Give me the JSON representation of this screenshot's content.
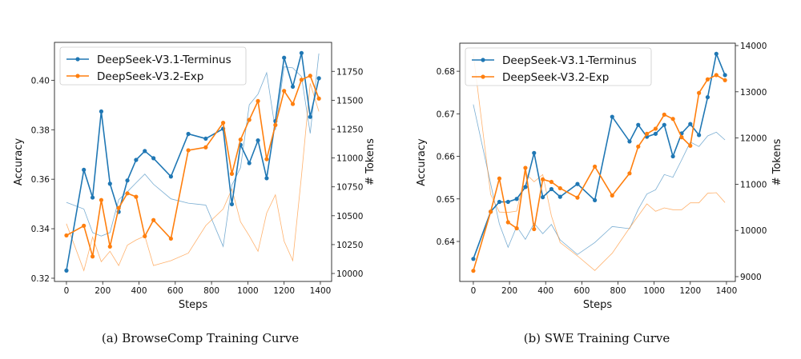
{
  "colors": {
    "terminus": "#1f77b4",
    "exp": "#ff7f0e"
  },
  "chart_data": [
    {
      "type": "line",
      "caption": "(a)  BrowseComp Training Curve",
      "xlabel": "Steps",
      "ylabel": "Accuracy",
      "y2label": "# Tokens",
      "xlim": [
        -66,
        1462
      ],
      "ylim": [
        0.3187,
        0.4153
      ],
      "y2lim": [
        9931,
        12001
      ],
      "xticks": [
        0,
        200,
        400,
        600,
        800,
        1000,
        1200,
        1400
      ],
      "yticks": [
        "0.32",
        "0.34",
        "0.36",
        "0.38",
        "0.40"
      ],
      "y2ticks": [
        "10000",
        "10250",
        "10500",
        "10750",
        "11000",
        "11250",
        "11500",
        "11750"
      ],
      "legend_position": "top-left",
      "x": [
        0,
        96,
        144,
        192,
        240,
        288,
        336,
        384,
        432,
        480,
        576,
        672,
        768,
        864,
        912,
        960,
        1008,
        1056,
        1104,
        1152,
        1200,
        1248,
        1296,
        1344,
        1392
      ],
      "series": [
        {
          "name": "DeepSeek-V3.1-Terminus",
          "key": "terminus",
          "axis": "accuracy",
          "values": [
            0.3231,
            0.3638,
            0.3526,
            0.3874,
            0.3582,
            0.3468,
            0.3595,
            0.3678,
            0.3714,
            0.3685,
            0.3611,
            0.3783,
            0.3764,
            0.3804,
            0.3499,
            0.3739,
            0.3665,
            0.3757,
            0.3604,
            0.3835,
            0.4091,
            0.3974,
            0.411,
            0.3852,
            0.4008
          ]
        },
        {
          "name": "DeepSeek-V3.2-Exp",
          "key": "exp",
          "axis": "accuracy",
          "values": [
            0.3373,
            0.3412,
            0.3288,
            0.3516,
            0.3328,
            0.3484,
            0.3543,
            0.3529,
            0.337,
            0.3435,
            0.336,
            0.3717,
            0.3729,
            0.3828,
            0.3622,
            0.376,
            0.384,
            0.3916,
            0.3681,
            0.3819,
            0.3957,
            0.3904,
            0.4002,
            0.4018,
            0.3926
          ]
        },
        {
          "name": "DeepSeek-V3.1-Terminus tokens",
          "key": "terminus",
          "axis": "tokens",
          "values": [
            10616,
            10558,
            10354,
            10324,
            10354,
            10639,
            10708,
            10785,
            10861,
            10773,
            10646,
            10609,
            10592,
            10234,
            10766,
            10917,
            11460,
            11553,
            11738,
            11241,
            11789,
            11780,
            11704,
            11213,
            11905
          ]
        },
        {
          "name": "DeepSeek-V3.2-Exp tokens",
          "key": "exp",
          "axis": "tokens",
          "values": [
            10431,
            10025,
            10315,
            10102,
            10192,
            10069,
            10245,
            10290,
            10324,
            10069,
            10111,
            10176,
            10415,
            10558,
            10731,
            10447,
            10326,
            10192,
            10523,
            10681,
            10280,
            10111,
            10847,
            11646,
            11403
          ]
        }
      ]
    },
    {
      "type": "line",
      "caption": "(b)  SWE Training Curve",
      "xlabel": "Steps",
      "ylabel": "Accuracy",
      "y2label": "# Tokens",
      "xlim": [
        -75,
        1449
      ],
      "ylim": [
        0.6306,
        0.6866
      ],
      "y2lim": [
        8896,
        14052
      ],
      "xticks": [
        0,
        200,
        400,
        600,
        800,
        1000,
        1200,
        1400
      ],
      "yticks": [
        "0.64",
        "0.65",
        "0.66",
        "0.67",
        "0.68"
      ],
      "y2ticks": [
        "9000",
        "10000",
        "11000",
        "12000",
        "13000",
        "14000"
      ],
      "legend_position": "top-left",
      "x": [
        0,
        96,
        144,
        192,
        240,
        288,
        336,
        384,
        432,
        480,
        576,
        672,
        768,
        864,
        912,
        960,
        1008,
        1056,
        1104,
        1152,
        1200,
        1248,
        1296,
        1344,
        1392
      ],
      "series": [
        {
          "name": "DeepSeek-V3.1-Terminus",
          "key": "terminus",
          "axis": "accuracy",
          "values": [
            0.6359,
            0.647,
            0.6493,
            0.6493,
            0.65,
            0.6528,
            0.6608,
            0.6504,
            0.6523,
            0.6505,
            0.6535,
            0.6497,
            0.6693,
            0.6635,
            0.6674,
            0.6646,
            0.6653,
            0.6674,
            0.66,
            0.6654,
            0.6676,
            0.665,
            0.6739,
            0.6841,
            0.6791
          ]
        },
        {
          "name": "DeepSeek-V3.2-Exp",
          "key": "exp",
          "axis": "accuracy",
          "values": [
            0.6331,
            0.647,
            0.6548,
            0.6445,
            0.6431,
            0.6573,
            0.6429,
            0.6546,
            0.654,
            0.6525,
            0.6503,
            0.6576,
            0.6508,
            0.656,
            0.6623,
            0.6653,
            0.6665,
            0.6698,
            0.6688,
            0.6645,
            0.6625,
            0.6749,
            0.6781,
            0.6791,
            0.6779
          ]
        },
        {
          "name": "DeepSeek-V3.1-Terminus tokens",
          "key": "terminus",
          "axis": "tokens",
          "values": [
            12725,
            11007,
            10142,
            9635,
            10085,
            9808,
            10154,
            9929,
            10130,
            9796,
            9479,
            9739,
            10085,
            10038,
            10459,
            10787,
            10881,
            11210,
            11151,
            11526,
            11912,
            11815,
            12045,
            12126,
            11959
          ]
        },
        {
          "name": "DeepSeek-V3.2-Exp tokens",
          "key": "exp",
          "axis": "tokens",
          "values": [
            13822,
            10777,
            10397,
            10390,
            10419,
            11237,
            11054,
            11210,
            10315,
            9739,
            9450,
            9133,
            9507,
            10056,
            10315,
            10575,
            10414,
            10488,
            10448,
            10448,
            10597,
            10597,
            10805,
            10817,
            10604
          ]
        }
      ]
    }
  ]
}
